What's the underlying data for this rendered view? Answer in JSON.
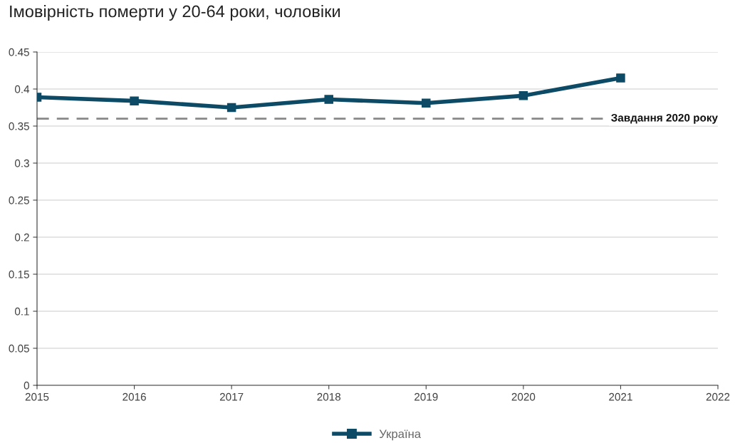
{
  "chart_data": {
    "type": "line",
    "title": "Імовірність померти у 20-64 роки, чоловіки",
    "x": [
      2015,
      2016,
      2017,
      2018,
      2019,
      2020,
      2021
    ],
    "series": [
      {
        "name": "Україна",
        "color": "#0d4a66",
        "values": [
          0.389,
          0.384,
          0.375,
          0.386,
          0.381,
          0.391,
          0.415
        ]
      }
    ],
    "xlim": [
      2015,
      2022
    ],
    "xticks": [
      2015,
      2016,
      2017,
      2018,
      2019,
      2020,
      2021,
      2022
    ],
    "ylim": [
      0,
      0.45
    ],
    "yticks": [
      0,
      0.05,
      0.1,
      0.15,
      0.2,
      0.25,
      0.3,
      0.35,
      0.4,
      0.45
    ],
    "ref_lines": [
      {
        "axis": "y",
        "value": 0.36,
        "label": "Завдання 2020 року",
        "color": "#888888",
        "line_style": "dashed"
      }
    ],
    "grid": "y",
    "legend": "bottom",
    "marker": "square",
    "line_style": "solid"
  }
}
